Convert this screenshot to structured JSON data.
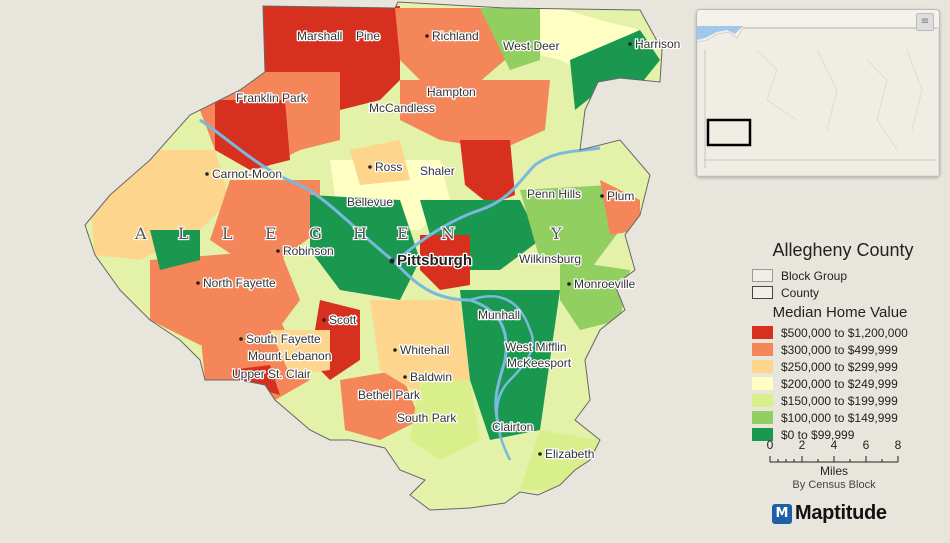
{
  "map": {
    "county_letters": [
      "A",
      "L",
      "L",
      "E",
      "G",
      "H",
      "E",
      "N",
      "Y"
    ],
    "places": [
      {
        "id": "marshall",
        "name": "Marshall"
      },
      {
        "id": "pine",
        "name": "Pine"
      },
      {
        "id": "richland",
        "name": "Richland"
      },
      {
        "id": "west-deer",
        "name": "West Deer"
      },
      {
        "id": "harrison",
        "name": "Harrison"
      },
      {
        "id": "franklin-park",
        "name": "Franklin Park"
      },
      {
        "id": "hampton",
        "name": "Hampton"
      },
      {
        "id": "mccandless",
        "name": "McCandless"
      },
      {
        "id": "carnot-moon",
        "name": "Carnot-Moon"
      },
      {
        "id": "ross",
        "name": "Ross"
      },
      {
        "id": "shaler",
        "name": "Shaler"
      },
      {
        "id": "penn-hills",
        "name": "Penn Hills"
      },
      {
        "id": "plum",
        "name": "Plum"
      },
      {
        "id": "bellevue",
        "name": "Bellevue"
      },
      {
        "id": "robinson",
        "name": "Robinson"
      },
      {
        "id": "pittsburgh",
        "name": "Pittsburgh"
      },
      {
        "id": "wilkinsburg",
        "name": "Wilkinsburg"
      },
      {
        "id": "north-fayette",
        "name": "North Fayette"
      },
      {
        "id": "monroeville",
        "name": "Monroeville"
      },
      {
        "id": "scott",
        "name": "Scott"
      },
      {
        "id": "munhall",
        "name": "Munhall"
      },
      {
        "id": "south-fayette",
        "name": "South Fayette"
      },
      {
        "id": "whitehall",
        "name": "Whitehall"
      },
      {
        "id": "west-mifflin",
        "name": "West Mifflin"
      },
      {
        "id": "mount-lebanon",
        "name": "Mount Lebanon"
      },
      {
        "id": "mckeesport",
        "name": "McKeesport"
      },
      {
        "id": "upper-st-clair",
        "name": "Upper St. Clair"
      },
      {
        "id": "baldwin",
        "name": "Baldwin"
      },
      {
        "id": "bethel-park",
        "name": "Bethel Park"
      },
      {
        "id": "south-park",
        "name": "South Park"
      },
      {
        "id": "clairton",
        "name": "Clairton"
      },
      {
        "id": "elizabeth",
        "name": "Elizabeth"
      }
    ]
  },
  "inset": {
    "button": "≡"
  },
  "legend": {
    "title": "Allegheny County",
    "layers": [
      {
        "label": "Block Group",
        "color": "#f0efe6"
      },
      {
        "label": "County",
        "color": "#f0efe6"
      }
    ],
    "subtitle": "Median Home Value",
    "classes": [
      {
        "label": "$500,000 to $1,200,000",
        "color": "#d7301f"
      },
      {
        "label": "$300,000 to $499,999",
        "color": "#f4865a"
      },
      {
        "label": "$250,000 to $299,999",
        "color": "#fdd58c"
      },
      {
        "label": "$200,000 to $249,999",
        "color": "#ffffc4"
      },
      {
        "label": "$150,000 to $199,999",
        "color": "#d9ef8b"
      },
      {
        "label": "$100,000 to $149,999",
        "color": "#91cf60"
      },
      {
        "label": "$0 to $99,999",
        "color": "#1a9850"
      }
    ]
  },
  "scale": {
    "ticks": [
      "0",
      "2",
      "4",
      "6",
      "8"
    ],
    "unit": "Miles",
    "note": "By Census Block"
  },
  "logo": {
    "icon": "M",
    "text": "Maptitude"
  }
}
